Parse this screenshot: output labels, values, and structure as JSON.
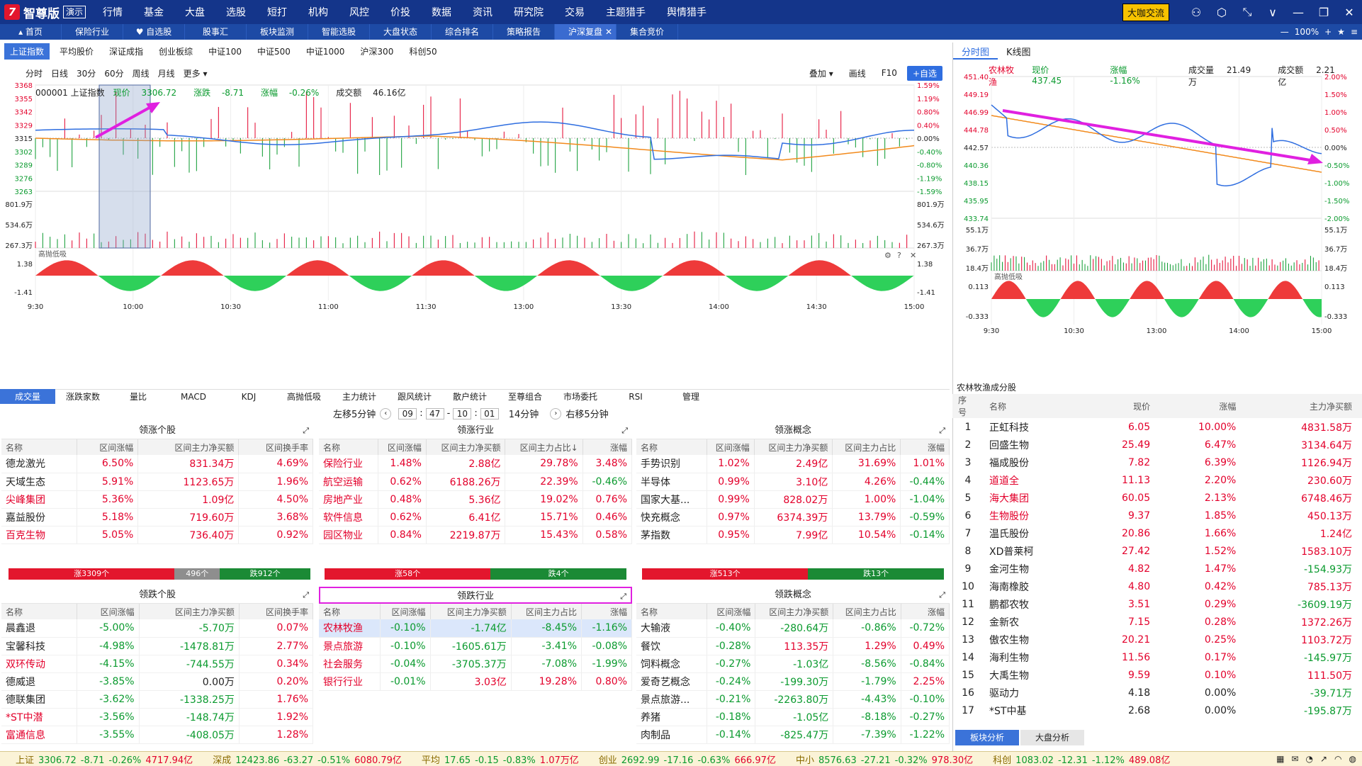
{
  "app": {
    "brand": "智尊版",
    "badge": "演示"
  },
  "main_menu": [
    "行情",
    "基金",
    "大盘",
    "选股",
    "短打",
    "机构",
    "风控",
    "价投",
    "数据",
    "资讯",
    "研究院",
    "交易",
    "主题猎手",
    "舆情猎手"
  ],
  "title_right": {
    "bigshot": "大咖交流",
    "zoom": "100%"
  },
  "tabs": [
    {
      "label": "首页",
      "icon": "home-icon"
    },
    {
      "label": "保险行业"
    },
    {
      "label": "自选股",
      "icon": "heart-icon"
    },
    {
      "label": "股事汇"
    },
    {
      "label": "板块监测"
    },
    {
      "label": "智能选股"
    },
    {
      "label": "大盘状态"
    },
    {
      "label": "综合排名"
    },
    {
      "label": "策略报告"
    },
    {
      "label": "沪深复盘",
      "active": true
    },
    {
      "label": "集合竞价"
    }
  ],
  "index_tabs": [
    "上证指数",
    "平均股价",
    "深证成指",
    "创业板综",
    "中证100",
    "中证500",
    "中证1000",
    "沪深300",
    "科创50"
  ],
  "period_tabs": [
    "分时",
    "日线",
    "30分",
    "60分",
    "周线",
    "月线",
    "更多"
  ],
  "chart_controls": {
    "overlay": "叠加",
    "draw": "画线",
    "f10": "F10",
    "add": "+自选"
  },
  "main_chart_info": {
    "code_name": "000001 上证指数",
    "price_label": "现价",
    "price": "3306.72",
    "change_label": "涨跌",
    "change": "-8.71",
    "pct_label": "涨幅",
    "pct": "-0.26%",
    "amount_label": "成交额",
    "amount": "46.16亿"
  },
  "main_chart_axes": {
    "price_ticks": [
      "3368",
      "3355",
      "3342",
      "3329",
      "3315",
      "3302",
      "3289",
      "3276",
      "3263"
    ],
    "pct_ticks": [
      "1.59%",
      "1.19%",
      "0.80%",
      "0.40%",
      "0.00%",
      "-0.40%",
      "-0.80%",
      "-1.19%",
      "-1.59%"
    ],
    "vol_ticks": [
      "801.9万",
      "534.6万",
      "267.3万"
    ],
    "indicator_name": "高抛低吸",
    "ind_ticks": [
      "1.38",
      "-1.41"
    ],
    "time_ticks": [
      "9:30",
      "10:00",
      "10:30",
      "11:00",
      "11:30",
      "13:00",
      "13:30",
      "14:00",
      "14:30",
      "15:00"
    ]
  },
  "bottom_tabs": [
    "成交量",
    "涨跌家数",
    "量比",
    "MACD",
    "KDJ",
    "高抛低吸",
    "主力统计",
    "跟风统计",
    "散户统计",
    "至尊组合",
    "市场委托",
    "RSI",
    "管理"
  ],
  "time_shift": {
    "left": "左移5分钟",
    "h1": "09",
    "m1": "47",
    "h2": "10",
    "m2": "01",
    "span": "14分钟",
    "right": "右移5分钟"
  },
  "colors": {
    "red": "#e3002b",
    "green": "#0a9a2e",
    "blue": "#2f6ee0",
    "orange": "#f28a1c",
    "magenta": "#e020e0",
    "accent": "#3b73d9"
  },
  "gainers_stocks": {
    "title": "领涨个股",
    "headers": [
      "名称",
      "区间涨幅",
      "区间主力净买额",
      "区间换手率"
    ],
    "rows": [
      [
        "德龙激光",
        "6.50%",
        "831.34万",
        "4.69%",
        "blk"
      ],
      [
        "天域生态",
        "5.91%",
        "1123.65万",
        "1.96%",
        "blk"
      ],
      [
        "尖峰集团",
        "5.36%",
        "1.09亿",
        "4.50%",
        "red"
      ],
      [
        "嘉益股份",
        "5.18%",
        "719.60万",
        "3.68%",
        "blk"
      ],
      [
        "百克生物",
        "5.05%",
        "736.40万",
        "0.92%",
        "red"
      ]
    ]
  },
  "gainers_industry": {
    "title": "领涨行业",
    "headers": [
      "名称",
      "区间涨幅",
      "区间主力净买额",
      "区间主力占比↓",
      "涨幅"
    ],
    "rows": [
      [
        "保险行业",
        "1.48%",
        "2.88亿",
        "29.78%",
        "3.48%"
      ],
      [
        "航空运输",
        "0.62%",
        "6188.26万",
        "22.39%",
        "-0.46%"
      ],
      [
        "房地产业",
        "0.48%",
        "5.36亿",
        "19.02%",
        "0.76%"
      ],
      [
        "软件信息",
        "0.62%",
        "6.41亿",
        "15.71%",
        "0.46%"
      ],
      [
        "园区物业",
        "0.84%",
        "2219.87万",
        "15.43%",
        "0.58%"
      ]
    ]
  },
  "gainers_concept": {
    "title": "领涨概念",
    "headers": [
      "名称",
      "区间涨幅",
      "区间主力净买额",
      "区间主力占比",
      "涨幅"
    ],
    "rows": [
      [
        "手势识别",
        "1.02%",
        "2.49亿",
        "31.69%",
        "1.01%"
      ],
      [
        "半导体",
        "0.99%",
        "3.10亿",
        "4.26%",
        "-0.44%"
      ],
      [
        "国家大基...",
        "0.99%",
        "828.02万",
        "1.00%",
        "-1.04%"
      ],
      [
        "快充概念",
        "0.97%",
        "6374.39万",
        "13.79%",
        "-0.59%"
      ],
      [
        "茅指数",
        "0.95%",
        "7.99亿",
        "10.54%",
        "-0.14%"
      ]
    ]
  },
  "breadth": {
    "stocks": {
      "up": "涨3309个",
      "flat": "496个",
      "down": "跌912个",
      "up_frac": 0.55,
      "flat_frac": 0.15
    },
    "industry": {
      "up": "涨58个",
      "down": "跌4个",
      "up_frac": 0.55
    },
    "concept": {
      "up": "涨513个",
      "down": "跌13个",
      "up_frac": 0.55
    }
  },
  "losers_stocks": {
    "title": "领跌个股",
    "headers": [
      "名称",
      "区间涨幅",
      "区间主力净买额",
      "区间换手率"
    ],
    "rows": [
      [
        "晨鑫退",
        "-5.00%",
        "-5.70万",
        "0.07%",
        "blk"
      ],
      [
        "宝馨科技",
        "-4.98%",
        "-1478.81万",
        "2.77%",
        "blk"
      ],
      [
        "双环传动",
        "-4.15%",
        "-744.55万",
        "0.34%",
        "red"
      ],
      [
        "德威退",
        "-3.85%",
        "0.00万",
        "0.20%",
        "blk"
      ],
      [
        "德联集团",
        "-3.62%",
        "-1338.25万",
        "1.76%",
        "blk"
      ],
      [
        "*ST中潜",
        "-3.56%",
        "-148.74万",
        "1.92%",
        "red"
      ],
      [
        "富通信息",
        "-3.55%",
        "-408.05万",
        "1.28%",
        "red"
      ]
    ]
  },
  "losers_industry": {
    "title": "领跌行业",
    "headers": [
      "名称",
      "区间涨幅",
      "区间主力净买额",
      "区间主力占比",
      "涨幅"
    ],
    "rows": [
      [
        "农林牧渔",
        "-0.10%",
        "-1.74亿",
        "-8.45%",
        "-1.16%"
      ],
      [
        "景点旅游",
        "-0.10%",
        "-1605.61万",
        "-3.41%",
        "-0.08%"
      ],
      [
        "社会服务",
        "-0.04%",
        "-3705.37万",
        "-7.08%",
        "-1.99%"
      ],
      [
        "银行行业",
        "-0.01%",
        "3.03亿",
        "19.28%",
        "0.80%"
      ]
    ]
  },
  "losers_concept": {
    "title": "领跌概念",
    "headers": [
      "名称",
      "区间涨幅",
      "区间主力净买额",
      "区间主力占比",
      "涨幅"
    ],
    "rows": [
      [
        "大输液",
        "-0.40%",
        "-280.64万",
        "-0.86%",
        "-0.72%"
      ],
      [
        "餐饮",
        "-0.28%",
        "113.35万",
        "1.29%",
        "0.49%"
      ],
      [
        "饲料概念",
        "-0.27%",
        "-1.03亿",
        "-8.56%",
        "-0.84%"
      ],
      [
        "爱奇艺概念",
        "-0.24%",
        "-199.30万",
        "-1.79%",
        "2.25%"
      ],
      [
        "景点旅游...",
        "-0.21%",
        "-2263.80万",
        "-4.43%",
        "-0.10%"
      ],
      [
        "养猪",
        "-0.18%",
        "-1.05亿",
        "-8.18%",
        "-0.27%"
      ],
      [
        "肉制品",
        "-0.14%",
        "-825.47万",
        "-7.39%",
        "-1.22%"
      ]
    ]
  },
  "right_tabs": [
    "分时图",
    "K线图"
  ],
  "right_chart_info": {
    "name": "农林牧渔",
    "price_label": "现价",
    "price": "437.45",
    "pct_label": "涨幅",
    "pct": "-1.16%",
    "vol_label": "成交量",
    "vol": "21.49万",
    "amt_label": "成交额",
    "amt": "2.21亿"
  },
  "right_chart_axes": {
    "price_ticks": [
      "451.40",
      "449.19",
      "446.99",
      "444.78",
      "442.57",
      "440.36",
      "438.15",
      "435.95",
      "433.74"
    ],
    "pct_ticks": [
      "2.00%",
      "1.50%",
      "1.00%",
      "0.50%",
      "0.00%",
      "-0.50%",
      "-1.00%",
      "-1.50%",
      "-2.00%"
    ],
    "vol_ticks": [
      "55.1万",
      "36.7万",
      "18.4万"
    ],
    "indicator_name": "高抛低吸",
    "ind_ticks": [
      "0.113",
      "-0.333"
    ],
    "time_ticks": [
      "9:30",
      "10:30",
      "13:00",
      "14:00",
      "15:00"
    ]
  },
  "constituents": {
    "title": "农林牧渔成分股",
    "headers": [
      "序号",
      "名称",
      "现价",
      "涨幅",
      "主力净买额"
    ],
    "rows": [
      [
        "1",
        "正虹科技",
        "6.05",
        "10.00%",
        "4831.58万",
        "blk"
      ],
      [
        "2",
        "回盛生物",
        "25.49",
        "6.47%",
        "3134.64万",
        "blk"
      ],
      [
        "3",
        "福成股份",
        "7.82",
        "6.39%",
        "1126.94万",
        "blk"
      ],
      [
        "4",
        "道道全",
        "11.13",
        "2.20%",
        "230.60万",
        "red"
      ],
      [
        "5",
        "海大集团",
        "60.05",
        "2.13%",
        "6748.46万",
        "red"
      ],
      [
        "6",
        "生物股份",
        "9.37",
        "1.85%",
        "450.13万",
        "red"
      ],
      [
        "7",
        "温氏股份",
        "20.86",
        "1.66%",
        "1.24亿",
        "blk"
      ],
      [
        "8",
        "XD普莱柯",
        "27.42",
        "1.52%",
        "1583.10万",
        "blk"
      ],
      [
        "9",
        "金河生物",
        "4.82",
        "1.47%",
        "-154.93万",
        "blk"
      ],
      [
        "10",
        "海南橡胶",
        "4.80",
        "0.42%",
        "785.13万",
        "blk"
      ],
      [
        "11",
        "鹏都农牧",
        "3.51",
        "0.29%",
        "-3609.19万",
        "blk"
      ],
      [
        "12",
        "金新农",
        "7.15",
        "0.28%",
        "1372.26万",
        "blk"
      ],
      [
        "13",
        "傲农生物",
        "20.21",
        "0.25%",
        "1103.72万",
        "blk"
      ],
      [
        "14",
        "海利生物",
        "11.56",
        "0.17%",
        "-145.97万",
        "blk"
      ],
      [
        "15",
        "大禹生物",
        "9.59",
        "0.10%",
        "111.50万",
        "blk"
      ],
      [
        "16",
        "驱动力",
        "4.18",
        "0.00%",
        "-39.71万",
        "blk"
      ],
      [
        "17",
        "*ST中基",
        "2.68",
        "0.00%",
        "-195.87万",
        "blk"
      ]
    ]
  },
  "right_bottom_tabs": [
    "板块分析",
    "大盘分析"
  ],
  "statusbar": [
    {
      "name": "上证",
      "v": "3306.72",
      "c": "-8.71",
      "p": "-0.26%",
      "a": "4717.94亿"
    },
    {
      "name": "深成",
      "v": "12423.86",
      "c": "-63.27",
      "p": "-0.51%",
      "a": "6080.79亿"
    },
    {
      "name": "平均",
      "v": "17.65",
      "c": "-0.15",
      "p": "-0.83%",
      "a": "1.07万亿"
    },
    {
      "name": "创业",
      "v": "2692.99",
      "c": "-17.16",
      "p": "-0.63%",
      "a": "666.97亿"
    },
    {
      "name": "中小",
      "v": "8576.63",
      "c": "-27.21",
      "p": "-0.32%",
      "a": "978.30亿"
    },
    {
      "name": "科创",
      "v": "1083.02",
      "c": "-12.31",
      "p": "-1.12%",
      "a": "489.08亿"
    }
  ]
}
